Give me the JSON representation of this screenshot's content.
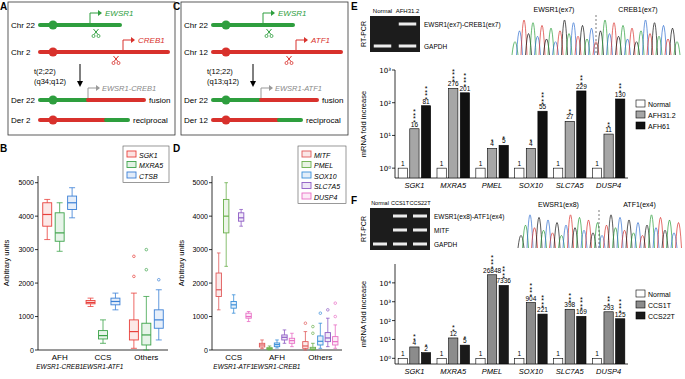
{
  "panel_labels": [
    "A",
    "B",
    "C",
    "D",
    "E",
    "F"
  ],
  "diagrams": [
    {
      "chr_top": "Chr 22",
      "gene_top": "EWSR1",
      "chr_bottom": "Chr 2",
      "gene_bottom": "CREB1",
      "translocation": "t(2;22)",
      "breakpoints": "(q34;q12)",
      "fusion_gene": "EWSR1-CREB1",
      "fusion": "fusion",
      "der_top": "Der 22",
      "der_bottom": "Der 2",
      "reciprocal": "reciprocal"
    },
    {
      "chr_top": "Chr 22",
      "gene_top": "EWSR1",
      "chr_bottom": "Chr 12",
      "gene_bottom": "ATF1",
      "translocation": "t(12;22)",
      "breakpoints": "(q13;q12)",
      "fusion_gene": "EWSR1-ATF1",
      "fusion": "fusion",
      "der_top": "Der 22",
      "der_bottom": "Der 12",
      "reciprocal": "reciprocal"
    }
  ],
  "gels": [
    {
      "method": "RT-PCR",
      "lanes": [
        "Normal",
        "AFH31.2"
      ],
      "bands": [
        {
          "label": "EWSR1(ex7)-CREB1(ex7)",
          "lanes_present": [
            false,
            true
          ]
        },
        {
          "label": "GAPDH",
          "lanes_present": [
            true,
            true
          ]
        }
      ],
      "junction": [
        "EWSR1(ex7)",
        "CREB1(ex7)"
      ]
    },
    {
      "method": "RT-PCR",
      "lanes": [
        "Normal",
        "CCS1T",
        "CCS22T"
      ],
      "bands": [
        {
          "label": "EWSR1(ex8)-ATF1(ex4)",
          "lanes_present": [
            false,
            true,
            true
          ]
        },
        {
          "label": "MITF",
          "lanes_present": [
            false,
            true,
            true
          ]
        },
        {
          "label": "GAPDH",
          "lanes_present": [
            true,
            true,
            true
          ]
        }
      ],
      "junction": [
        "EWSR1(ex8)",
        "ATF1(ex4)"
      ]
    }
  ],
  "chart_data": [
    {
      "type": "box",
      "y_label": "Arbitrary units",
      "ylim": [
        0,
        5200
      ],
      "yticks": [
        0,
        1000,
        2000,
        3000,
        4000,
        5000
      ],
      "groups": [
        "AFH",
        "CCS",
        "Others"
      ],
      "group_sublabels": [
        "EWSR1-CREB1",
        "EWSR1-ATF1",
        null
      ],
      "legend": "upper right",
      "series": [
        {
          "name": "SGK1",
          "color": "#e8413c",
          "boxes": [
            {
              "min": 3300,
              "q1": 3700,
              "median": 4050,
              "q3": 4400,
              "max": 4500,
              "outliers": []
            },
            {
              "min": 1300,
              "q1": 1380,
              "median": 1420,
              "q3": 1480,
              "max": 1550,
              "outliers": []
            },
            {
              "min": 50,
              "q1": 300,
              "median": 550,
              "q3": 900,
              "max": 1700,
              "outliers": [
                2200,
                2800
              ]
            }
          ]
        },
        {
          "name": "MXRA5",
          "color": "#3da34a",
          "boxes": [
            {
              "min": 2950,
              "q1": 3250,
              "median": 3500,
              "q3": 4100,
              "max": 4400,
              "outliers": []
            },
            {
              "min": 200,
              "q1": 330,
              "median": 430,
              "q3": 580,
              "max": 900,
              "outliers": []
            },
            {
              "min": 0,
              "q1": 150,
              "median": 450,
              "q3": 800,
              "max": 1600,
              "outliers": [
                2400,
                3000
              ]
            }
          ]
        },
        {
          "name": "CTSB",
          "color": "#3a7fd5",
          "boxes": [
            {
              "min": 3950,
              "q1": 4200,
              "median": 4400,
              "q3": 4600,
              "max": 4850,
              "outliers": []
            },
            {
              "min": 1200,
              "q1": 1350,
              "median": 1450,
              "q3": 1550,
              "max": 1700,
              "outliers": []
            },
            {
              "min": 300,
              "q1": 650,
              "median": 900,
              "q3": 1200,
              "max": 1800,
              "outliers": [
                2100
              ]
            }
          ]
        }
      ]
    },
    {
      "type": "box",
      "y_label": "Arbitrary units",
      "ylim": [
        0,
        5200
      ],
      "yticks": [
        0,
        1000,
        2000,
        3000,
        4000,
        5000
      ],
      "groups": [
        "CCS",
        "AFH",
        "Others"
      ],
      "group_sublabels": [
        "EWSR1-ATF1",
        "EWSR1-CREB1",
        null
      ],
      "legend": "upper right",
      "series": [
        {
          "name": "MITF",
          "color": "#e05a5a",
          "boxes": [
            {
              "min": 1200,
              "q1": 1600,
              "median": 1800,
              "q3": 2300,
              "max": 2900,
              "outliers": []
            },
            {
              "min": 40,
              "q1": 90,
              "median": 150,
              "q3": 200,
              "max": 300,
              "outliers": []
            },
            {
              "min": 0,
              "q1": 50,
              "median": 120,
              "q3": 250,
              "max": 550,
              "outliers": [
                800
              ]
            }
          ]
        },
        {
          "name": "PMEL",
          "color": "#6ab04c",
          "boxes": [
            {
              "min": 2500,
              "q1": 3500,
              "median": 4000,
              "q3": 4500,
              "max": 5000,
              "outliers": []
            },
            {
              "min": 0,
              "q1": 20,
              "median": 40,
              "q3": 70,
              "max": 120,
              "outliers": []
            },
            {
              "min": 0,
              "q1": 10,
              "median": 30,
              "q3": 80,
              "max": 200,
              "outliers": [
                500,
                700
              ]
            }
          ]
        },
        {
          "name": "SOX10",
          "color": "#3b8fd9",
          "boxes": [
            {
              "min": 1100,
              "q1": 1250,
              "median": 1350,
              "q3": 1450,
              "max": 1650,
              "outliers": []
            },
            {
              "min": 60,
              "q1": 100,
              "median": 160,
              "q3": 210,
              "max": 300,
              "outliers": []
            },
            {
              "min": 50,
              "q1": 150,
              "median": 260,
              "q3": 420,
              "max": 800,
              "outliers": [
                1100
              ]
            }
          ]
        },
        {
          "name": "SLC7A5",
          "color": "#8e5cc4",
          "boxes": [
            {
              "min": 3700,
              "q1": 3850,
              "median": 3950,
              "q3": 4100,
              "max": 4200,
              "outliers": []
            },
            {
              "min": 200,
              "q1": 300,
              "median": 380,
              "q3": 450,
              "max": 600,
              "outliers": []
            },
            {
              "min": 100,
              "q1": 250,
              "median": 360,
              "q3": 520,
              "max": 950,
              "outliers": [
                1200
              ]
            }
          ]
        },
        {
          "name": "DUSP4",
          "color": "#e86fc5",
          "boxes": [
            {
              "min": 850,
              "q1": 950,
              "median": 1000,
              "q3": 1100,
              "max": 1150,
              "outliers": []
            },
            {
              "min": 100,
              "q1": 200,
              "median": 280,
              "q3": 350,
              "max": 500,
              "outliers": []
            },
            {
              "min": 50,
              "q1": 150,
              "median": 250,
              "q3": 400,
              "max": 750,
              "outliers": [
                1000,
                1400
              ]
            }
          ]
        }
      ]
    },
    {
      "type": "bar",
      "log": "y",
      "y_label": "mRNA fold increase",
      "ylim": [
        0.5,
        1000
      ],
      "yticks": [
        {
          "value": 1,
          "label": "10⁰"
        },
        {
          "value": 10,
          "label": "10¹"
        },
        {
          "value": 100,
          "label": "10²"
        },
        {
          "value": 1000,
          "label": "10³"
        }
      ],
      "categories": [
        "SGK1",
        "MXRA5",
        "PMEL",
        "SOX10",
        "SLC7A5",
        "DUSP4"
      ],
      "data_labels": true,
      "legend": "right",
      "series": [
        {
          "name": "Normal",
          "color": "#ffffff",
          "values": [
            1,
            1,
            1,
            1,
            1,
            1
          ],
          "significance": [
            null,
            null,
            null,
            null,
            null,
            null
          ]
        },
        {
          "name": "AFH31.2",
          "color": "#a6a6a6",
          "values": [
            16,
            276,
            4,
            4,
            27,
            11
          ],
          "significance": [
            "****",
            "****",
            "*",
            "*",
            "**",
            "**"
          ]
        },
        {
          "name": "AFH61",
          "color": "#111111",
          "values": [
            81,
            201,
            5,
            55,
            229,
            130
          ],
          "significance": [
            "****",
            "****",
            "*",
            "****",
            "***",
            "***"
          ]
        }
      ]
    },
    {
      "type": "bar",
      "log": "y",
      "y_label": "mRNA fold increase",
      "ylim": [
        0.5,
        100000
      ],
      "yticks": [
        {
          "value": 1,
          "label": "10⁰"
        },
        {
          "value": 10,
          "label": "10¹"
        },
        {
          "value": 100,
          "label": "10²"
        },
        {
          "value": 1000,
          "label": "10³"
        },
        {
          "value": 10000,
          "label": "10⁴"
        }
      ],
      "categories": [
        "SGK1",
        "MXRA5",
        "PMEL",
        "SOX10",
        "SLC7A5",
        "DUSP4"
      ],
      "data_labels": true,
      "legend": "right",
      "series": [
        {
          "name": "Normal",
          "color": "#ffffff",
          "values": [
            1,
            1,
            1,
            1,
            1,
            1
          ],
          "significance": [
            null,
            null,
            null,
            null,
            null,
            null
          ]
        },
        {
          "name": "CCS1T",
          "color": "#8c8c8c",
          "values": [
            4,
            12,
            26848,
            904,
            398,
            293
          ],
          "significance": [
            "**",
            "**",
            "****",
            "****",
            "***",
            "***"
          ]
        },
        {
          "name": "CCS22T",
          "color": "#1a1a1a",
          "values": [
            2,
            5,
            7336,
            221,
            169,
            125
          ],
          "significance": [
            "*",
            "*",
            "****",
            "****",
            "****",
            "****"
          ]
        }
      ]
    }
  ]
}
